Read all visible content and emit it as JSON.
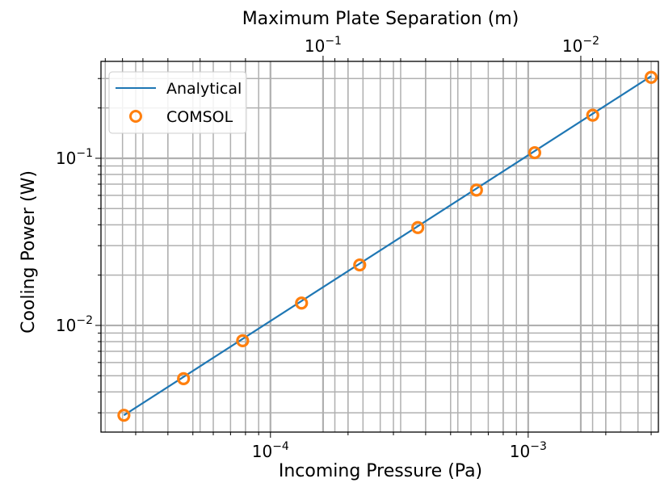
{
  "chart_data": {
    "type": "line",
    "title": "",
    "xlabel": "Incoming Pressure (Pa)",
    "ylabel": "Cooling Power (W)",
    "top_xlabel": "Maximum Plate Separation (m)",
    "x_scale": "log",
    "y_scale": "log",
    "top_x_scale": "log",
    "xlim": [
      2.2e-05,
      0.0032
    ],
    "ylim": [
      0.0023,
      0.38
    ],
    "grid": true,
    "grid_which": "both",
    "legend": {
      "position": "top-left"
    },
    "x_ticks": [
      {
        "value": 0.0001,
        "base": "10",
        "exp": "−4"
      },
      {
        "value": 0.001,
        "base": "10",
        "exp": "−3"
      }
    ],
    "y_ticks": [
      {
        "value": 0.01,
        "base": "10",
        "exp": "−2"
      },
      {
        "value": 0.1,
        "base": "10",
        "exp": "−1"
      }
    ],
    "top_x_ticks": [
      {
        "pressure_equivalent": 0.00016,
        "base": "10",
        "exp": "−1"
      },
      {
        "pressure_equivalent": 0.0016,
        "base": "10",
        "exp": "−2"
      }
    ],
    "series": [
      {
        "name": "Analytical",
        "kind": "line",
        "color": "#1f77b4",
        "x": [
          2.7e-05,
          0.003
        ],
        "y": [
          0.0029,
          0.31
        ]
      },
      {
        "name": "COMSOL",
        "kind": "markers",
        "marker": "open-circle",
        "color": "#ff7f0e",
        "x": [
          2.7e-05,
          4.6e-05,
          7.8e-05,
          0.000132,
          0.000222,
          0.000373,
          0.00063,
          0.00106,
          0.00178,
          0.003
        ],
        "y": [
          0.0029,
          0.0048,
          0.0081,
          0.0136,
          0.023,
          0.0385,
          0.0645,
          0.108,
          0.181,
          0.305
        ]
      }
    ]
  }
}
